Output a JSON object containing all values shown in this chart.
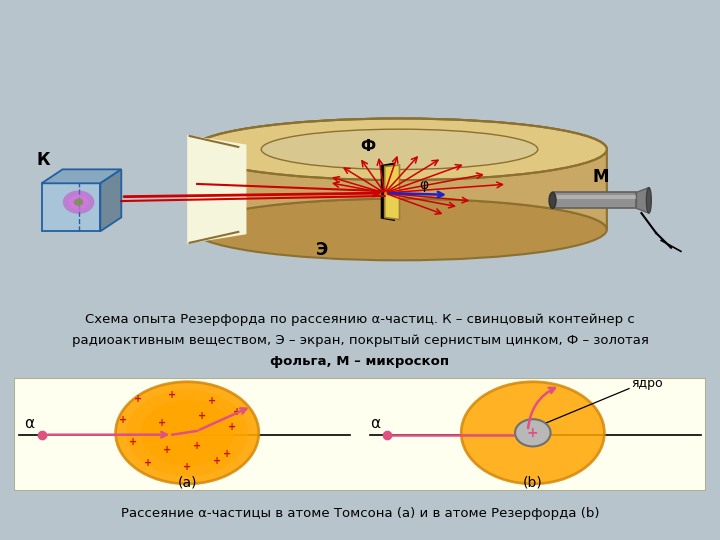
{
  "bg_outer": "#B8C4CC",
  "bg_top_panel": "#F5F5DC",
  "bg_bottom_panel": "#FFFFF0",
  "caption1_line1": "Схема опыта Резерфорда по рассеянию α-частиц. К – свинцовый контейнер с",
  "caption1_line2": "радиоактивным веществом, Э – экран, покрытый сернистым цинком, Ф – золотая",
  "caption1_line3": "фольга, М – микроскоп",
  "caption2": "Рассеяние α-частицы в атоме Томсона (а) и в атоме Резерфорда (b)",
  "orange_color": "#FFA500",
  "orange_dark": "#D4880A",
  "pink_color": "#E05080",
  "red_color": "#CC0000",
  "blue_color": "#2020CC",
  "tan_color": "#C8A864",
  "tan_dark": "#8B7030",
  "tan_light": "#E0C880"
}
